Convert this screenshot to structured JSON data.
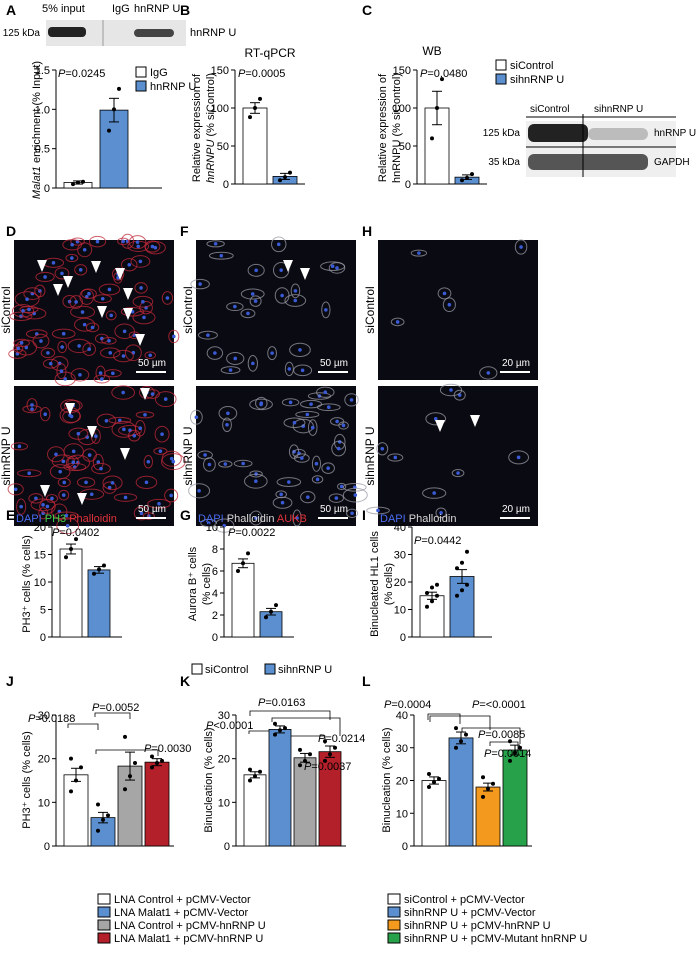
{
  "panel_labels": [
    "A",
    "B",
    "C",
    "D",
    "F",
    "H",
    "E",
    "G",
    "I",
    "J",
    "K",
    "L"
  ],
  "colors": {
    "blue": "#5b8fd0",
    "white": "#ffffff",
    "gray": "#a6a6a6",
    "red": "#b3202a",
    "orange": "#f39a1e",
    "green": "#27a24a"
  },
  "A": {
    "blot": {
      "lanes": [
        "5% input",
        "IgG",
        "hnRNP U"
      ],
      "mw": "125 kDa",
      "band_label": "hnRNP U"
    },
    "pvalue": "P=0.0245",
    "legend": [
      "IgG",
      "hnRNP U"
    ],
    "ylabel_italic": "Malat1",
    "ylabel_rest": " enrichment (% Input)"
  },
  "B": {
    "title": "RT-qPCR",
    "pvalue": "P=0.0005",
    "ylabel_line1": "Relative expression of",
    "ylabel_italic": "hnRNPU",
    "ylabel_rest": " (% siControl)"
  },
  "C": {
    "title": "WB",
    "pvalue": "P=0.0480",
    "legend": [
      "siControl",
      "sihnRNP U"
    ],
    "ylabel_line1": "Relative expression of",
    "ylabel_line2": "hnRNPU (% siControl)",
    "blot": {
      "lanes": [
        "siControl",
        "sihnRNP U"
      ],
      "rows": [
        {
          "mw": "125 kDa",
          "label": "hnRNP U"
        },
        {
          "mw": "35 kDa",
          "label": "GAPDH"
        }
      ]
    }
  },
  "D": {
    "rows": [
      "siControl",
      "sihnRNP U"
    ],
    "scale": "50 µm",
    "stain": [
      "DAPI",
      "PH3",
      "Phalloidin"
    ]
  },
  "F": {
    "rows": [
      "siControl",
      "sihnRNP U"
    ],
    "scale": "50 µm",
    "stain": [
      "DAPI",
      "Phalloidin",
      "AUKB"
    ]
  },
  "H": {
    "rows": [
      "siControl",
      "sihnRNP U"
    ],
    "scale": "20 µm",
    "stain": [
      "DAPI",
      "Phalloidin"
    ]
  },
  "E": {
    "pvalue": "P=0.0402",
    "ylabel": "PH3⁺ cells (% cells)"
  },
  "G": {
    "pvalue": "P=0.0022",
    "ylabel_line1": "Aurora B⁺ cells",
    "ylabel_line2": "(% cells)",
    "legend": [
      "siControl",
      "sihnRNP U"
    ]
  },
  "I": {
    "pvalue": "P=0.0442",
    "ylabel_line1": "Binucleated HL1 cells",
    "ylabel_line2": "(% cells)"
  },
  "J": {
    "pvalues": [
      "P=0.0188",
      "P=0.0052",
      "P=0.0030"
    ],
    "ylabel": "PH3⁺ cells (% cells)",
    "legend": [
      "LNA Control + pCMV-Vector",
      "LNA Malat1 + pCMV-Vector",
      "LNA Control + pCMV-hnRNP U",
      "LNA Malat1 + pCMV-hnRNP U"
    ]
  },
  "K": {
    "pvalues": [
      "P<0.0001",
      "P=0.0163",
      "P=0.0214",
      "P=0.0037"
    ],
    "ylabel": "Binucleation (% cells)"
  },
  "L": {
    "pvalues": [
      "P=0.0004",
      "P=<0.0001",
      "P=0.0085",
      "P=0.0014"
    ],
    "ylabel": "Binucleation (% cells)",
    "legend": [
      "siControl + pCMV-Vector",
      "sihnRNP U + pCMV-Vector",
      "sihnRNP U + pCMV-hnRNP U",
      "sihnRNP U + pCMV-Mutant hnRNP U"
    ]
  },
  "chart_data": [
    {
      "id": "A",
      "type": "bar",
      "categories": [
        "IgG",
        "hnRNP U"
      ],
      "values": [
        0.07,
        0.99
      ],
      "errors": [
        0.02,
        0.15
      ],
      "points": [
        [
          0.05,
          0.07,
          0.08
        ],
        [
          0.73,
          1.0,
          1.26
        ]
      ],
      "ylim": [
        0,
        1.5
      ],
      "yticks": [
        0,
        0.5,
        1.0,
        1.5
      ],
      "ytick_labels": [
        "0",
        "0.5",
        "1.0",
        "1.5"
      ]
    },
    {
      "id": "B",
      "type": "bar",
      "categories": [
        "siControl",
        "sihnRNP U"
      ],
      "values": [
        100,
        10
      ],
      "errors": [
        7,
        4
      ],
      "points": [
        [
          88,
          100,
          112
        ],
        [
          5,
          9,
          15
        ]
      ],
      "ylim": [
        0,
        150
      ],
      "yticks": [
        0,
        50,
        100,
        150
      ]
    },
    {
      "id": "C",
      "type": "bar",
      "categories": [
        "siControl",
        "sihnRNP U"
      ],
      "values": [
        100,
        9
      ],
      "errors": [
        22,
        3
      ],
      "points": [
        [
          60,
          100,
          138
        ],
        [
          5,
          8,
          13
        ]
      ],
      "ylim": [
        0,
        150
      ],
      "yticks": [
        0,
        50,
        100,
        150
      ]
    },
    {
      "id": "E",
      "type": "bar",
      "categories": [
        "siControl",
        "sihnRNP U"
      ],
      "values": [
        16,
        12.2
      ],
      "errors": [
        0.9,
        0.6
      ],
      "points": [
        [
          14.5,
          16,
          17.8
        ],
        [
          11.5,
          12.3,
          13
        ]
      ],
      "ylim": [
        0,
        20
      ],
      "yticks": [
        0,
        5,
        10,
        15,
        20
      ]
    },
    {
      "id": "G",
      "type": "bar",
      "categories": [
        "siControl",
        "sihnRNP U"
      ],
      "values": [
        6.7,
        2.3
      ],
      "errors": [
        0.4,
        0.3
      ],
      "points": [
        [
          6.0,
          6.7,
          7.6
        ],
        [
          1.8,
          2.3,
          2.9
        ]
      ],
      "ylim": [
        0,
        10
      ],
      "yticks": [
        0,
        2,
        4,
        6,
        8,
        10
      ]
    },
    {
      "id": "I",
      "type": "bar",
      "categories": [
        "siControl",
        "sihnRNP U"
      ],
      "values": [
        15,
        22
      ],
      "errors": [
        1.3,
        2.5
      ],
      "points": [
        [
          11,
          13,
          15,
          16,
          18,
          19
        ],
        [
          15,
          17,
          19,
          25,
          27,
          31
        ]
      ],
      "ylim": [
        0,
        40
      ],
      "yticks": [
        0,
        10,
        20,
        30,
        40
      ]
    },
    {
      "id": "J",
      "type": "bar",
      "categories": [
        "LNA Control + pCMV-Vector",
        "LNA Malat1 + pCMV-Vector",
        "LNA Control + pCMV-hnRNP U",
        "LNA Malat1 + pCMV-hnRNP U"
      ],
      "values": [
        16.3,
        6.5,
        18.3,
        19.2
      ],
      "errors": [
        1.5,
        1.2,
        3.2,
        0.8
      ],
      "points": [
        [
          12.5,
          15,
          18,
          20
        ],
        [
          3.5,
          6,
          7,
          9.5
        ],
        [
          13,
          16,
          19,
          25
        ],
        [
          18,
          19,
          19.5,
          20.5
        ]
      ],
      "ylim": [
        0,
        30
      ],
      "yticks": [
        0,
        10,
        20,
        30
      ]
    },
    {
      "id": "K",
      "type": "bar",
      "categories": [
        "LNA Control + pCMV-Vector",
        "LNA Malat1 + pCMV-Vector",
        "LNA Control + pCMV-hnRNP U",
        "LNA Malat1 + pCMV-hnRNP U"
      ],
      "values": [
        16.3,
        26.7,
        20.2,
        21.6
      ],
      "errors": [
        0.7,
        0.8,
        1.0,
        1.3
      ],
      "points": [
        [
          15,
          16,
          17,
          17.5
        ],
        [
          25.5,
          26.5,
          27,
          28
        ],
        [
          18.5,
          19.5,
          21,
          22
        ],
        [
          19.5,
          21,
          22.5,
          24
        ]
      ],
      "ylim": [
        0,
        30
      ],
      "yticks": [
        0,
        10,
        20,
        30
      ]
    },
    {
      "id": "L",
      "type": "bar",
      "categories": [
        "siControl + pCMV-Vector",
        "sihnRNP U + pCMV-Vector",
        "sihnRNP U + pCMV-hnRNP U",
        "sihnRNP U + pCMV-Mutant hnRNP U"
      ],
      "values": [
        20,
        33,
        18,
        29.3
      ],
      "errors": [
        1.1,
        1.8,
        1.2,
        1.5
      ],
      "points": [
        [
          18,
          19.5,
          20.5,
          22
        ],
        [
          30,
          32,
          34,
          36
        ],
        [
          15,
          17.5,
          19,
          21
        ],
        [
          26,
          28.5,
          30,
          32
        ]
      ],
      "ylim": [
        0,
        40
      ],
      "yticks": [
        0,
        10,
        20,
        30,
        40
      ]
    }
  ]
}
